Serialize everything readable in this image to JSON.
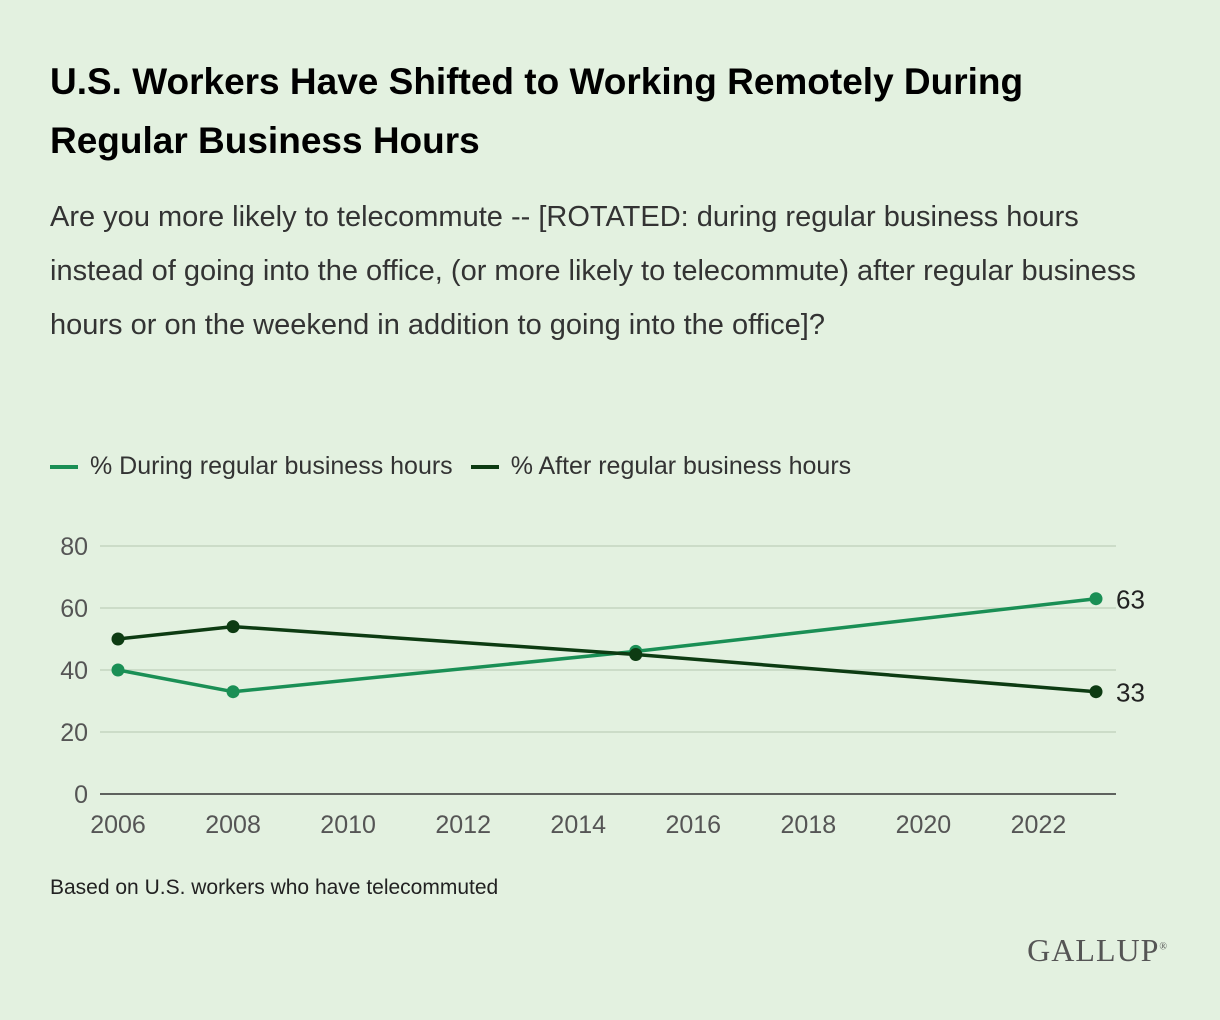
{
  "header": {
    "title": "U.S. Workers Have Shifted to Working Remotely During Regular Business Hours",
    "subtitle": "Are you more likely to telecommute -- [ROTATED: during regular business hours instead of going into the office, (or more likely to telecommute) after regular business hours or on the weekend in addition to going into the office]?"
  },
  "footnote": "Based on U.S. workers who have telecommuted",
  "logo": "GALLUP",
  "chart_data": {
    "type": "line",
    "title": "U.S. Workers Have Shifted to Working Remotely During Regular Business Hours",
    "xlabel": "",
    "ylabel": "",
    "xlim": [
      2006,
      2023
    ],
    "ylim": [
      0,
      80
    ],
    "x_ticks": [
      2006,
      2008,
      2010,
      2012,
      2014,
      2016,
      2018,
      2020,
      2022
    ],
    "y_ticks": [
      0,
      20,
      40,
      60,
      80
    ],
    "grid": true,
    "legend": "top-left",
    "series": [
      {
        "name": "% During regular business hours",
        "color": "#1a8f55",
        "x": [
          2006,
          2008,
          2015,
          2023
        ],
        "values": [
          40,
          33,
          46,
          63
        ],
        "end_label": "63"
      },
      {
        "name": "% After regular business hours",
        "color": "#0d3b12",
        "x": [
          2006,
          2008,
          2015,
          2023
        ],
        "values": [
          50,
          54,
          45,
          33
        ],
        "end_label": "33"
      }
    ]
  }
}
